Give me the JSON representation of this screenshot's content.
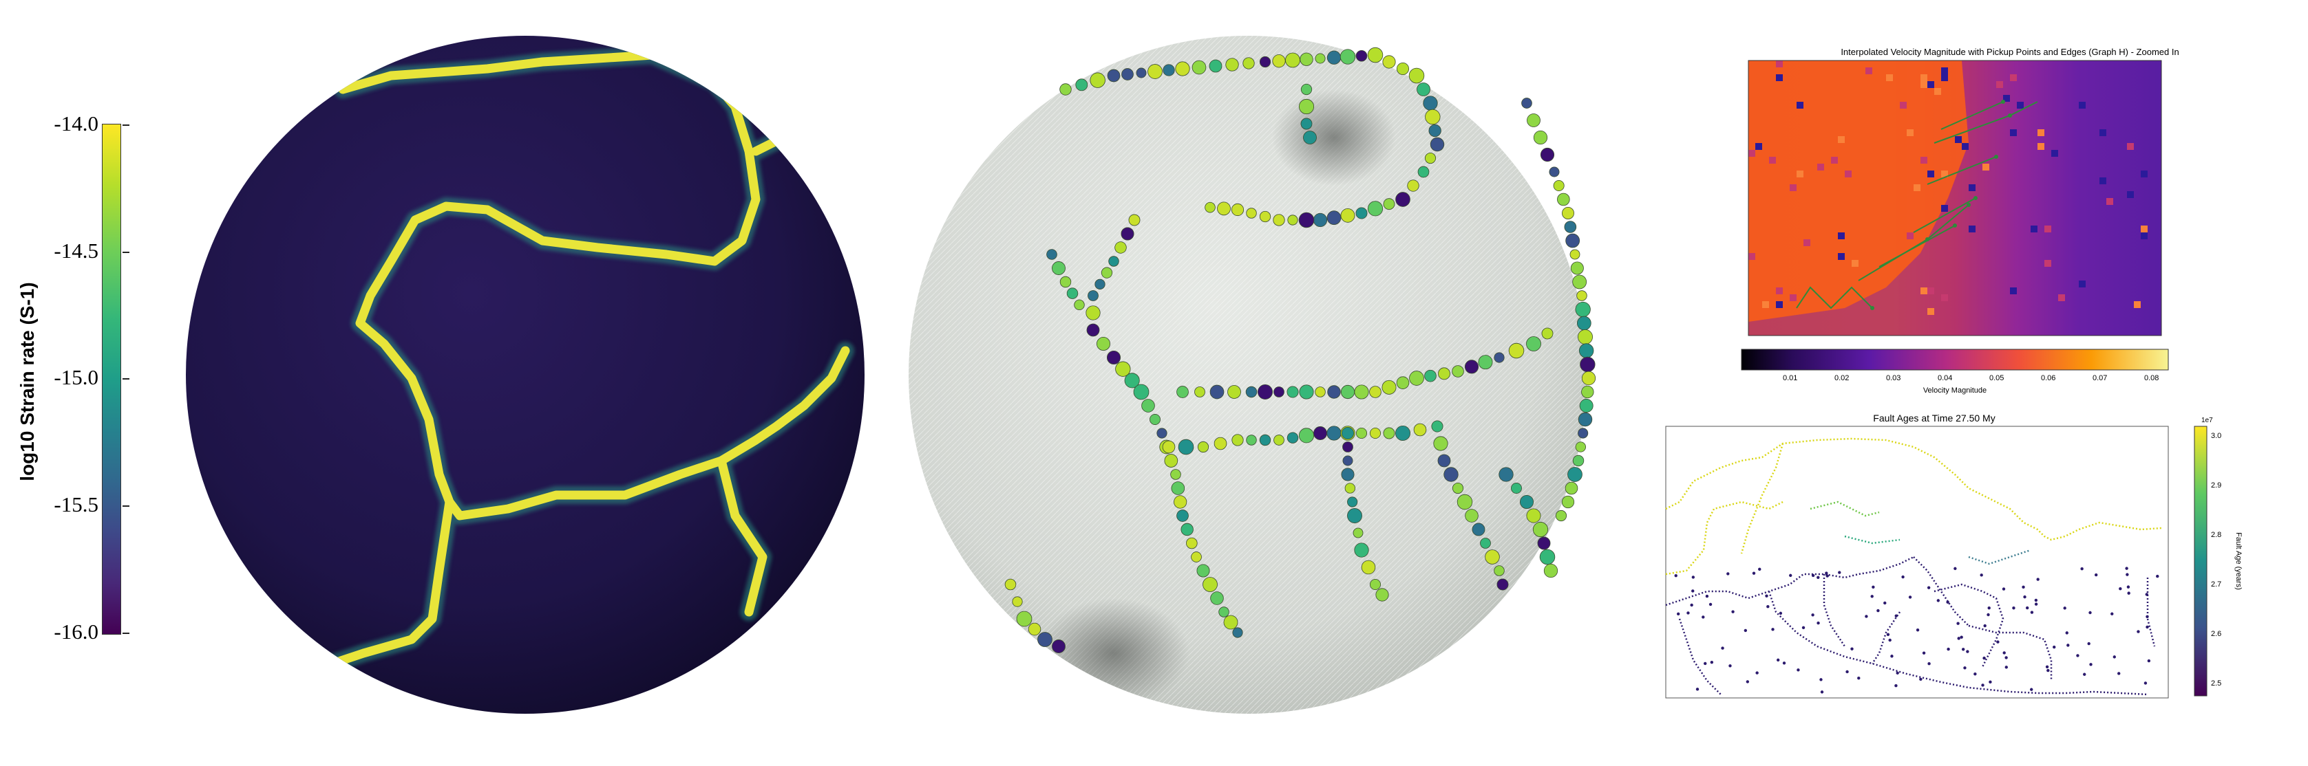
{
  "left_colorbar": {
    "title": "log10 Strain rate (S-1)",
    "ticks": [
      "-14.0",
      "-14.5",
      "-15.0",
      "-15.5",
      "-16.0"
    ],
    "colormap": "viridis"
  },
  "velocity_panel": {
    "title": "Interpolated Velocity Magnitude with Pickup Points and Edges (Graph H) - Zoomed In",
    "colorbar_label": "Velocity Magnitude",
    "colorbar_ticks": [
      "0.01",
      "0.02",
      "0.03",
      "0.04",
      "0.05",
      "0.06",
      "0.07",
      "0.08"
    ],
    "colormap": "plasma"
  },
  "fault_panel": {
    "title": "Fault Ages at Time 27.50 My",
    "colorbar_label": "Fault Age (years)",
    "colorbar_exponent": "1e7",
    "colorbar_ticks": [
      "3.0",
      "2.9",
      "2.8",
      "2.7",
      "2.6",
      "2.5"
    ],
    "colormap": "viridis"
  },
  "colors": {
    "globe_dark": "#1b1240",
    "strain_high": "#e8e53a",
    "sphere_mesh": "#d9ddd8"
  }
}
